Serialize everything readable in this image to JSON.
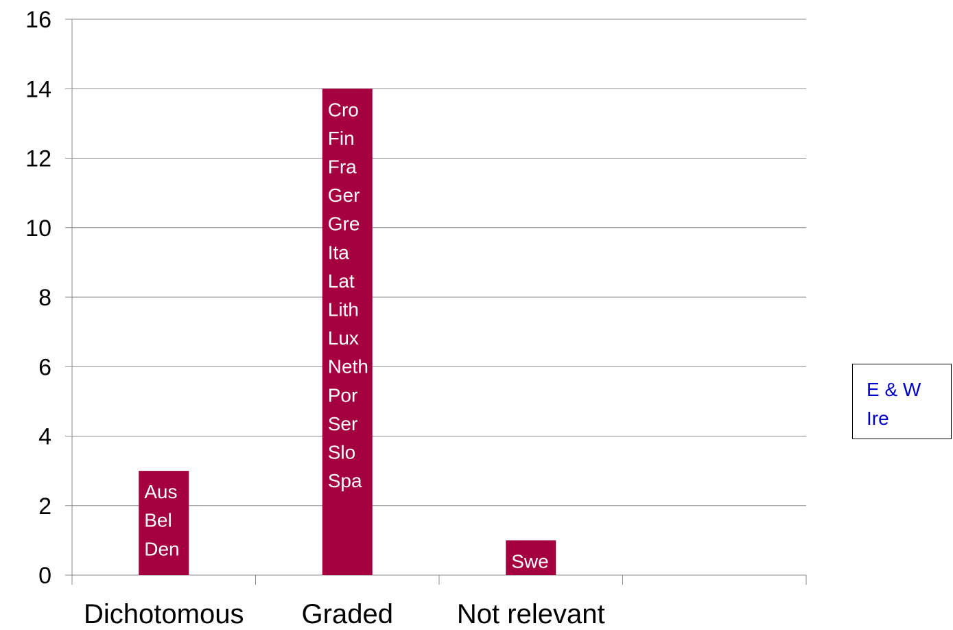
{
  "chart_data": {
    "type": "bar",
    "categories": [
      "Dichotomous",
      "Graded",
      "Not relevant",
      ""
    ],
    "values": [
      3,
      14,
      1,
      0
    ],
    "bar_labels": [
      [
        "Aus",
        "Bel",
        "Den"
      ],
      [
        "Cro",
        "Fin",
        "Fra",
        "Ger",
        "Gre",
        "Ita",
        "Lat",
        "Lith",
        "Lux",
        "Neth",
        "Por",
        "Ser",
        "Slo",
        "Spa"
      ],
      [
        "Swe"
      ],
      []
    ],
    "title": "",
    "xlabel": "",
    "ylabel": "",
    "ylim": [
      0,
      16
    ],
    "yticks": [
      0,
      2,
      4,
      6,
      8,
      10,
      12,
      14,
      16
    ],
    "grid": true,
    "bar_color": "#a50040",
    "annotation": [
      "E & W",
      "Ire"
    ],
    "annotation_color": "#0000cc"
  }
}
